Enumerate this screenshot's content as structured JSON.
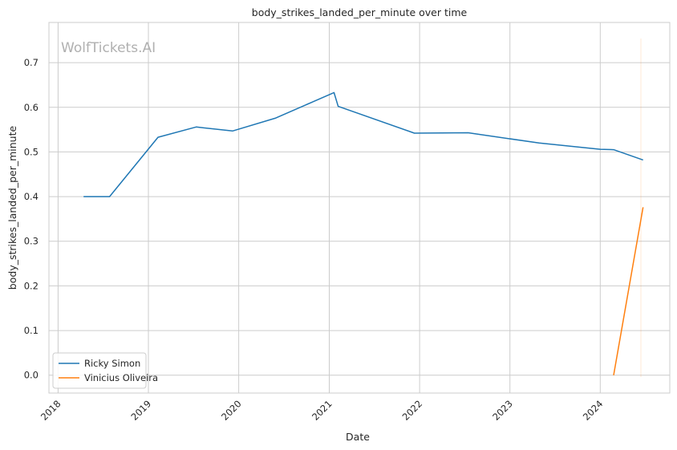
{
  "chart_data": {
    "type": "line",
    "title": "body_strikes_landed_per_minute over time",
    "xlabel": "Date",
    "ylabel": "body_strikes_landed_per_minute",
    "watermark": "WolfTickets.AI",
    "xlim": [
      "2017-11-25",
      "2024-10-08"
    ],
    "ylim": [
      -0.04,
      0.79
    ],
    "x_ticks": [
      "2018",
      "2019",
      "2020",
      "2021",
      "2022",
      "2023",
      "2024"
    ],
    "y_ticks": [
      "0.0",
      "0.1",
      "0.2",
      "0.3",
      "0.4",
      "0.5",
      "0.6",
      "0.7"
    ],
    "grid": true,
    "legend_position": "lower-left",
    "series": [
      {
        "name": "Ricky Simon",
        "color": "#1f77b4",
        "points": [
          {
            "x": "2018-04-14",
            "y": 0.4
          },
          {
            "x": "2018-07-28",
            "y": 0.4
          },
          {
            "x": "2019-02-09",
            "y": 0.533
          },
          {
            "x": "2019-07-13",
            "y": 0.556
          },
          {
            "x": "2019-12-07",
            "y": 0.547
          },
          {
            "x": "2020-05-30",
            "y": 0.576
          },
          {
            "x": "2021-01-20",
            "y": 0.633
          },
          {
            "x": "2021-02-06",
            "y": 0.602
          },
          {
            "x": "2021-12-11",
            "y": 0.542
          },
          {
            "x": "2022-07-16",
            "y": 0.543
          },
          {
            "x": "2023-04-29",
            "y": 0.52
          },
          {
            "x": "2024-01-01",
            "y": 0.506
          },
          {
            "x": "2024-02-24",
            "y": 0.505
          },
          {
            "x": "2024-06-22",
            "y": 0.482
          }
        ]
      },
      {
        "name": "Vinicius Oliveira",
        "color": "#ff7f0e",
        "points": [
          {
            "x": "2024-02-24",
            "y": 0.0
          },
          {
            "x": "2024-06-22",
            "y": 0.376
          }
        ]
      }
    ]
  }
}
